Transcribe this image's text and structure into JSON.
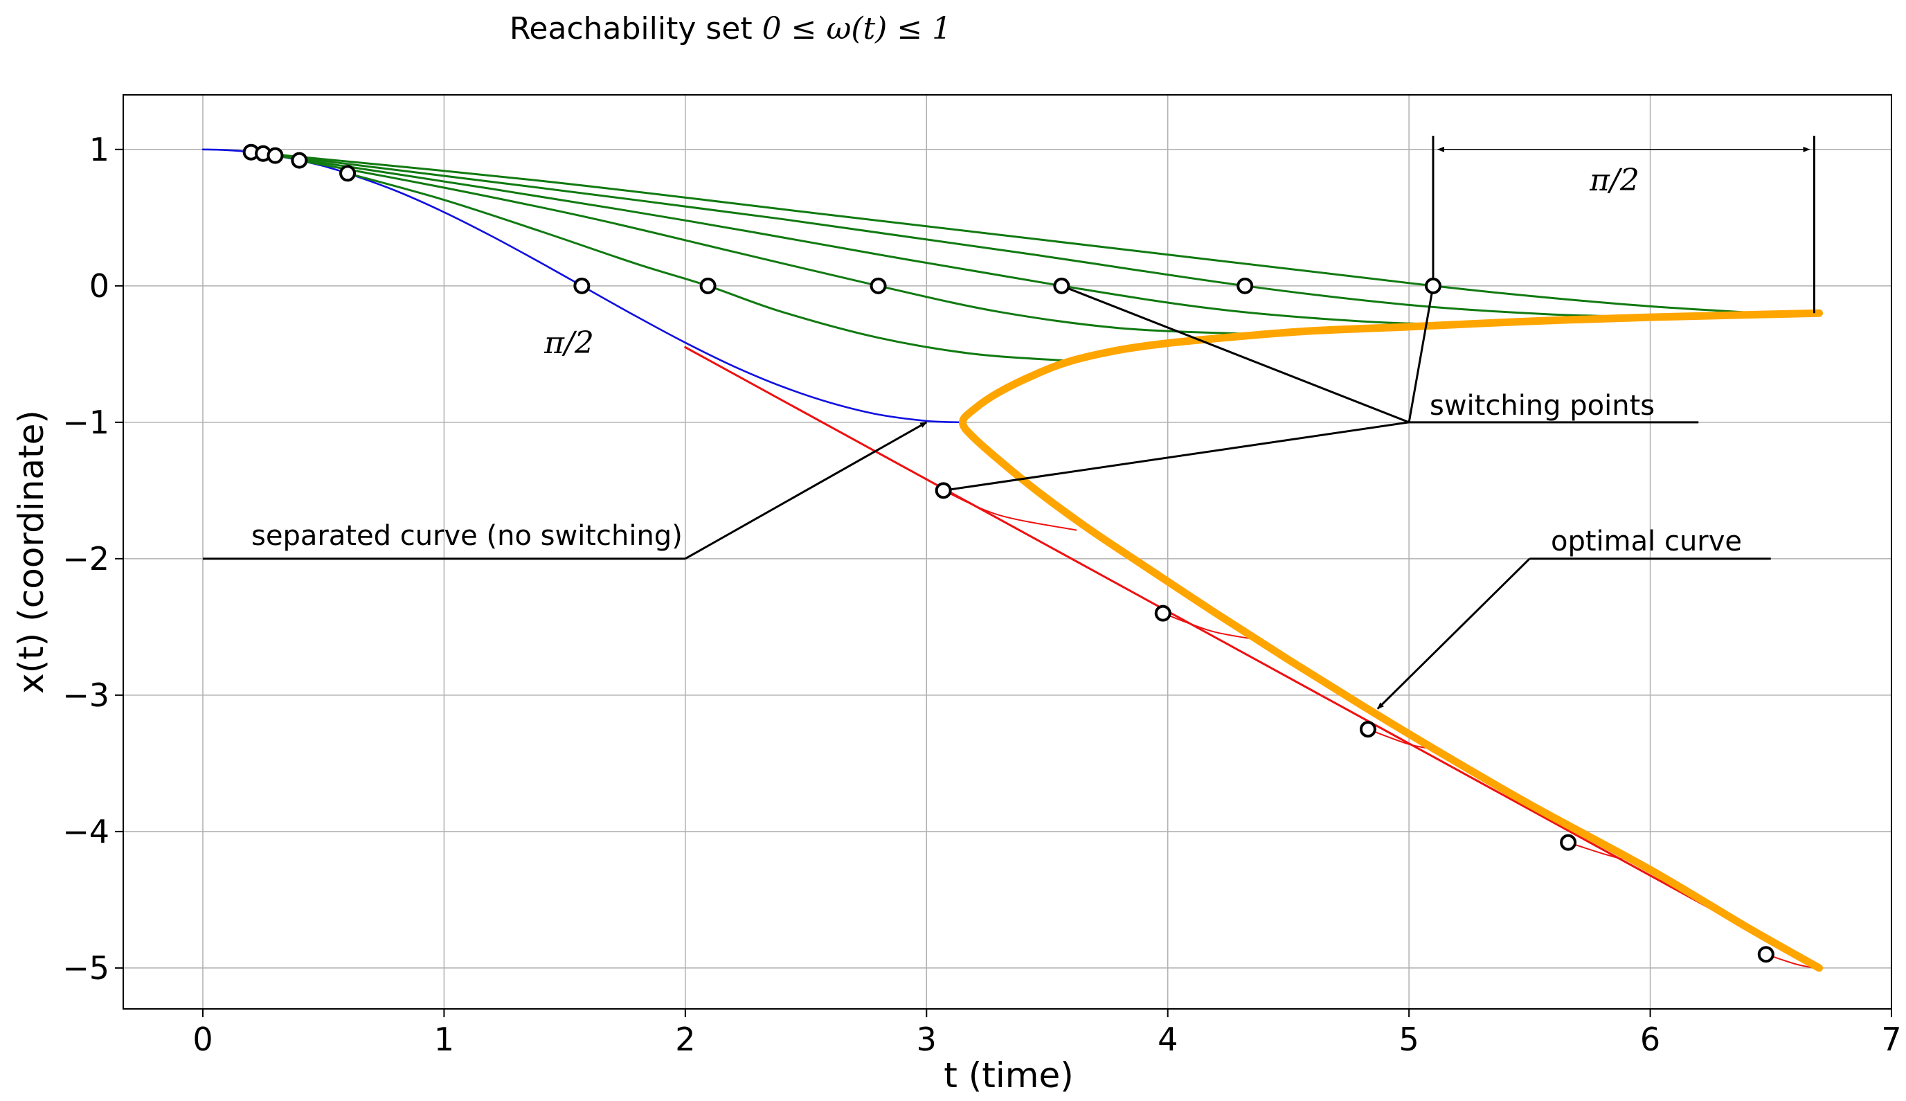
{
  "chart_data": {
    "type": "line",
    "title_prefix": "Reachability set ",
    "title_math": "0 ≤ ω(t) ≤ 1",
    "xlabel": "t (time)",
    "ylabel": "x(t) (coordinate)",
    "xlim": [
      -0.33,
      7.0
    ],
    "ylim": [
      -5.3,
      1.4
    ],
    "xticks": [
      0,
      1,
      2,
      3,
      4,
      5,
      6,
      7
    ],
    "xtick_labels": [
      "0",
      "1",
      "2",
      "3",
      "4",
      "5",
      "6",
      "7"
    ],
    "yticks": [
      1,
      0,
      -1,
      -2,
      -3,
      -4,
      -5
    ],
    "ytick_labels": [
      "1",
      "0",
      "−1",
      "−2",
      "−3",
      "−4",
      "−5"
    ],
    "grid": true,
    "colors": {
      "blue": "#1010e0",
      "green": "#117a11",
      "red": "#ee1111",
      "orange": "#ffa500",
      "black": "#000000",
      "grid": "#b0b0b0"
    },
    "series": [
      {
        "name": "separated curve",
        "color": "blue",
        "width": 2.6,
        "points": [
          [
            0,
            1
          ],
          [
            0.1,
            0.995
          ],
          [
            0.2,
            0.98
          ],
          [
            0.3,
            0.955
          ],
          [
            0.4,
            0.92
          ],
          [
            0.5,
            0.878
          ],
          [
            0.6,
            0.825
          ],
          [
            0.8,
            0.697
          ],
          [
            1.0,
            0.54
          ],
          [
            1.2,
            0.362
          ],
          [
            1.4,
            0.17
          ],
          [
            1.571,
            0
          ],
          [
            1.8,
            -0.227
          ],
          [
            2.0,
            -0.416
          ],
          [
            2.2,
            -0.589
          ],
          [
            2.4,
            -0.737
          ],
          [
            2.6,
            -0.856
          ],
          [
            2.8,
            -0.943
          ],
          [
            3.0,
            -0.99
          ],
          [
            3.14,
            -1.0
          ]
        ]
      },
      {
        "name": "green 1",
        "color": "green",
        "width": 3,
        "points": [
          [
            0.6,
            0.825
          ],
          [
            1.0,
            0.63
          ],
          [
            1.4,
            0.4
          ],
          [
            1.8,
            0.16
          ],
          [
            2.094,
            0
          ],
          [
            2.4,
            -0.19
          ],
          [
            2.8,
            -0.38
          ],
          [
            3.2,
            -0.5
          ],
          [
            3.6,
            -0.55
          ]
        ]
      },
      {
        "name": "green 2",
        "color": "green",
        "width": 3,
        "points": [
          [
            0.4,
            0.92
          ],
          [
            1.0,
            0.72
          ],
          [
            1.6,
            0.5
          ],
          [
            2.2,
            0.25
          ],
          [
            2.8,
            0
          ],
          [
            3.3,
            -0.19
          ],
          [
            3.8,
            -0.31
          ],
          [
            4.3,
            -0.35
          ]
        ]
      },
      {
        "name": "green 3",
        "color": "green",
        "width": 3,
        "points": [
          [
            0.3,
            0.955
          ],
          [
            1.2,
            0.71
          ],
          [
            2.0,
            0.48
          ],
          [
            2.8,
            0.23
          ],
          [
            3.56,
            0
          ],
          [
            4.2,
            -0.17
          ],
          [
            4.8,
            -0.26
          ],
          [
            5.3,
            -0.29
          ]
        ]
      },
      {
        "name": "green 4",
        "color": "green",
        "width": 3,
        "points": [
          [
            0.25,
            0.97
          ],
          [
            1.3,
            0.74
          ],
          [
            2.4,
            0.49
          ],
          [
            3.4,
            0.24
          ],
          [
            4.32,
            0
          ],
          [
            5.0,
            -0.14
          ],
          [
            5.6,
            -0.21
          ],
          [
            6.1,
            -0.23
          ]
        ]
      },
      {
        "name": "green 5",
        "color": "green",
        "width": 3,
        "points": [
          [
            0.2,
            0.98
          ],
          [
            1.4,
            0.77
          ],
          [
            2.6,
            0.52
          ],
          [
            3.9,
            0.25
          ],
          [
            5.1,
            0
          ],
          [
            5.6,
            -0.09
          ],
          [
            6.0,
            -0.15
          ],
          [
            6.45,
            -0.2
          ]
        ]
      },
      {
        "name": "red main",
        "color": "red",
        "width": 3,
        "points": [
          [
            2.0,
            -0.45
          ],
          [
            6.7,
            -5.0
          ]
        ]
      },
      {
        "name": "red branch 1",
        "color": "red",
        "width": 2,
        "points": [
          [
            3.07,
            -1.5
          ],
          [
            3.3,
            -1.68
          ],
          [
            3.62,
            -1.79
          ]
        ]
      },
      {
        "name": "red branch 2",
        "color": "red",
        "width": 2,
        "points": [
          [
            3.98,
            -2.4
          ],
          [
            4.18,
            -2.53
          ],
          [
            4.36,
            -2.59
          ]
        ]
      },
      {
        "name": "red branch 3",
        "color": "red",
        "width": 2,
        "points": [
          [
            4.83,
            -3.25
          ],
          [
            5.0,
            -3.36
          ],
          [
            5.12,
            -3.4
          ]
        ]
      },
      {
        "name": "red branch 4",
        "color": "red",
        "width": 2,
        "points": [
          [
            5.66,
            -4.08
          ],
          [
            5.8,
            -4.16
          ],
          [
            5.88,
            -4.2
          ]
        ]
      },
      {
        "name": "red branch 5",
        "color": "red",
        "width": 2,
        "points": [
          [
            6.48,
            -4.9
          ],
          [
            6.6,
            -4.97
          ],
          [
            6.68,
            -5.0
          ]
        ]
      },
      {
        "name": "optimal curve",
        "color": "orange",
        "width": 11,
        "points": [
          [
            6.7,
            -0.2
          ],
          [
            6.0,
            -0.23
          ],
          [
            5.5,
            -0.26
          ],
          [
            5.0,
            -0.3
          ],
          [
            4.6,
            -0.33
          ],
          [
            4.3,
            -0.37
          ],
          [
            4.0,
            -0.42
          ],
          [
            3.8,
            -0.47
          ],
          [
            3.6,
            -0.55
          ],
          [
            3.45,
            -0.65
          ],
          [
            3.3,
            -0.78
          ],
          [
            3.2,
            -0.9
          ],
          [
            3.15,
            -1.0
          ],
          [
            3.2,
            -1.12
          ],
          [
            3.35,
            -1.35
          ],
          [
            3.5,
            -1.56
          ],
          [
            3.68,
            -1.79
          ],
          [
            3.9,
            -2.05
          ],
          [
            4.2,
            -2.4
          ],
          [
            4.5,
            -2.74
          ],
          [
            4.8,
            -3.07
          ],
          [
            5.1,
            -3.39
          ],
          [
            5.5,
            -3.8
          ],
          [
            6.0,
            -4.28
          ],
          [
            6.4,
            -4.7
          ],
          [
            6.7,
            -5.0
          ]
        ]
      }
    ],
    "switching_points": [
      [
        0.2,
        0.98
      ],
      [
        0.25,
        0.97
      ],
      [
        0.3,
        0.955
      ],
      [
        0.4,
        0.92
      ],
      [
        0.6,
        0.825
      ],
      [
        1.571,
        0
      ],
      [
        2.094,
        0
      ],
      [
        2.8,
        0
      ],
      [
        3.56,
        0
      ],
      [
        4.32,
        0
      ],
      [
        5.1,
        0
      ],
      [
        3.07,
        -1.5
      ],
      [
        3.98,
        -2.4
      ],
      [
        4.83,
        -3.25
      ],
      [
        5.66,
        -4.08
      ],
      [
        6.48,
        -4.9
      ]
    ],
    "annotations": {
      "pi_half_label": "π/2",
      "pi_half_bracket_label": "π/2",
      "switching_points_label": "switching points",
      "separated_curve_label": "separated curve (no switching)",
      "optimal_curve_label": "optimal curve"
    }
  }
}
